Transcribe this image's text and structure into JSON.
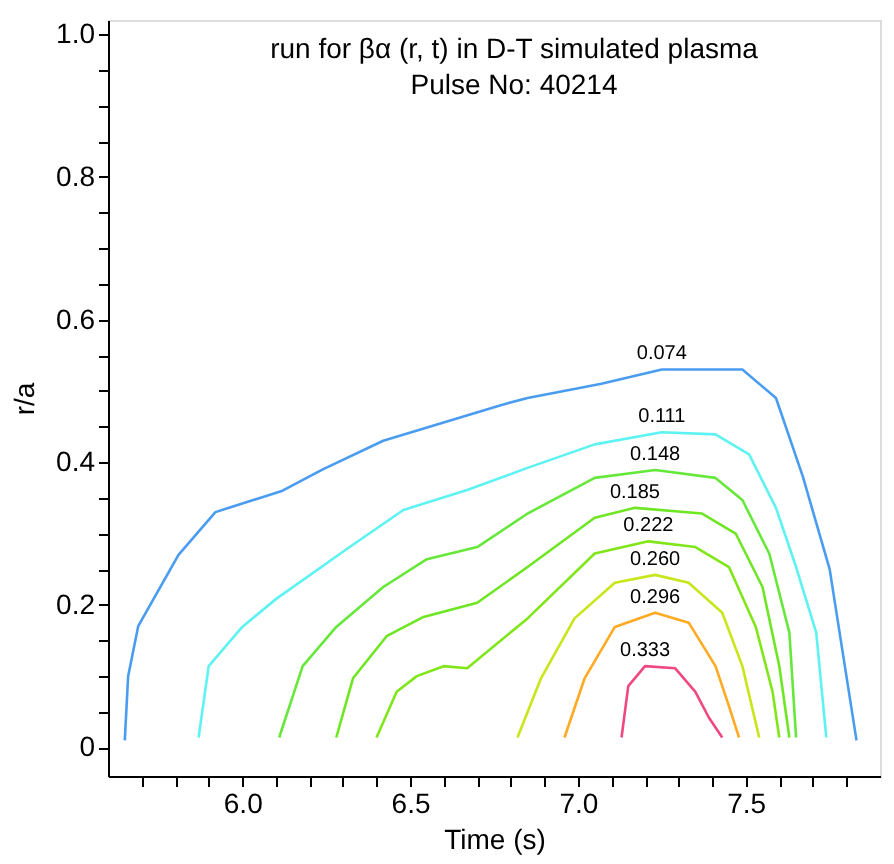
{
  "chart_data": {
    "type": "line",
    "title": "run for βα (r, t) in D-T simulated plasma",
    "subtitle": "Pulse No: 40214",
    "xlabel": "Time (s)",
    "ylabel": "r/a",
    "xlim": [
      5.6,
      7.9
    ],
    "ylim": [
      -0.04,
      1.02
    ],
    "xticks": [
      {
        "value": 5.7,
        "label": null
      },
      {
        "value": 5.8,
        "label": null
      },
      {
        "value": 5.9,
        "label": null
      },
      {
        "value": 6.0,
        "label": "6.0"
      },
      {
        "value": 6.1,
        "label": null
      },
      {
        "value": 6.2,
        "label": null
      },
      {
        "value": 6.3,
        "label": null
      },
      {
        "value": 6.4,
        "label": null
      },
      6.5,
      {
        "value": 6.6,
        "label": null
      },
      {
        "value": 6.7,
        "label": null
      },
      {
        "value": 6.8,
        "label": null
      },
      {
        "value": 6.9,
        "label": null
      },
      {
        "value": 7.0,
        "label": "7.0"
      },
      {
        "value": 7.1,
        "label": null
      },
      {
        "value": 7.2,
        "label": null
      },
      {
        "value": 7.3,
        "label": null
      },
      {
        "value": 7.4,
        "label": null
      },
      7.5,
      {
        "value": 7.6,
        "label": null
      },
      {
        "value": 7.7,
        "label": null
      },
      {
        "value": 7.8,
        "label": null
      }
    ],
    "yticks": [
      0,
      {
        "value": 0.05,
        "label": null
      },
      {
        "value": 0.1,
        "label": null
      },
      {
        "value": 0.15,
        "label": null
      },
      0.2,
      {
        "value": 0.25,
        "label": null
      },
      {
        "value": 0.3,
        "label": null
      },
      {
        "value": 0.35,
        "label": null
      },
      0.4,
      {
        "value": 0.45,
        "label": null
      },
      {
        "value": 0.5,
        "label": null
      },
      {
        "value": 0.55,
        "label": null
      },
      0.6,
      {
        "value": 0.65,
        "label": null
      },
      {
        "value": 0.7,
        "label": null
      },
      {
        "value": 0.75,
        "label": null
      },
      0.8,
      {
        "value": 0.85,
        "label": null
      },
      {
        "value": 0.9,
        "label": null
      },
      {
        "value": 0.95,
        "label": null
      },
      {
        "value": 1,
        "label": "1.0"
      }
    ],
    "grid": false,
    "legend": false,
    "marker": "none",
    "line_style": "solid",
    "series": [
      {
        "name": "0.074",
        "color": "#4a9cf0",
        "x": [
          5.65,
          5.66,
          5.69,
          5.81,
          5.92,
          6.12,
          6.24,
          6.42,
          6.77,
          6.85,
          7.07,
          7.25,
          7.41,
          7.49,
          7.59,
          7.67,
          7.75,
          7.83
        ],
        "values": [
          0.01,
          0.1,
          0.17,
          0.27,
          0.33,
          0.36,
          0.39,
          0.43,
          0.48,
          0.49,
          0.51,
          0.53,
          0.53,
          0.53,
          0.49,
          0.38,
          0.25,
          0.01
        ]
      },
      {
        "name": "0.111",
        "color": "#5ef2f2",
        "x": [
          5.87,
          5.9,
          6.0,
          6.1,
          6.32,
          6.48,
          6.67,
          6.85,
          7.05,
          7.25,
          7.41,
          7.51,
          7.59,
          7.65,
          7.71,
          7.74
        ],
        "values": [
          0.014,
          0.114,
          0.169,
          0.208,
          0.281,
          0.333,
          0.361,
          0.392,
          0.425,
          0.442,
          0.439,
          0.411,
          0.336,
          0.253,
          0.161,
          0.014
        ]
      },
      {
        "name": "0.148",
        "color": "#66e83a",
        "x": [
          6.11,
          6.18,
          6.28,
          6.42,
          6.55,
          6.7,
          6.85,
          7.05,
          7.23,
          7.41,
          7.49,
          7.57,
          7.63,
          7.65
        ],
        "values": [
          0.014,
          0.114,
          0.169,
          0.225,
          0.264,
          0.281,
          0.328,
          0.378,
          0.389,
          0.378,
          0.347,
          0.272,
          0.161,
          0.014
        ]
      },
      {
        "name": "0.185",
        "color": "#6ee624",
        "x": [
          6.28,
          6.33,
          6.43,
          6.54,
          6.7,
          6.85,
          7.05,
          7.17,
          7.37,
          7.47,
          7.55,
          7.6,
          7.63
        ],
        "values": [
          0.014,
          0.097,
          0.156,
          0.183,
          0.203,
          0.253,
          0.322,
          0.336,
          0.328,
          0.3,
          0.225,
          0.114,
          0.014
        ]
      },
      {
        "name": "0.222",
        "color": "#80e61a",
        "x": [
          6.4,
          6.46,
          6.52,
          6.6,
          6.67,
          6.85,
          7.05,
          7.21,
          7.35,
          7.45,
          7.53,
          7.58,
          7.6
        ],
        "values": [
          0.014,
          0.078,
          0.1,
          0.114,
          0.111,
          0.181,
          0.272,
          0.289,
          0.281,
          0.253,
          0.169,
          0.078,
          0.014
        ]
      },
      {
        "name": "0.260",
        "color": "#c8e61a",
        "x": [
          6.82,
          6.89,
          6.99,
          7.11,
          7.23,
          7.33,
          7.43,
          7.49,
          7.54
        ],
        "values": [
          0.014,
          0.097,
          0.181,
          0.231,
          0.242,
          0.231,
          0.189,
          0.114,
          0.014
        ]
      },
      {
        "name": "0.296",
        "color": "#ffaa22",
        "x": [
          6.96,
          7.02,
          7.11,
          7.23,
          7.33,
          7.41,
          7.45,
          7.48
        ],
        "values": [
          0.014,
          0.097,
          0.169,
          0.189,
          0.175,
          0.114,
          0.058,
          0.014
        ]
      },
      {
        "name": "0.333",
        "color": "#f04880",
        "x": [
          7.13,
          7.15,
          7.2,
          7.29,
          7.35,
          7.39,
          7.43
        ],
        "values": [
          0.014,
          0.086,
          0.114,
          0.111,
          0.078,
          0.042,
          0.014
        ]
      }
    ]
  }
}
